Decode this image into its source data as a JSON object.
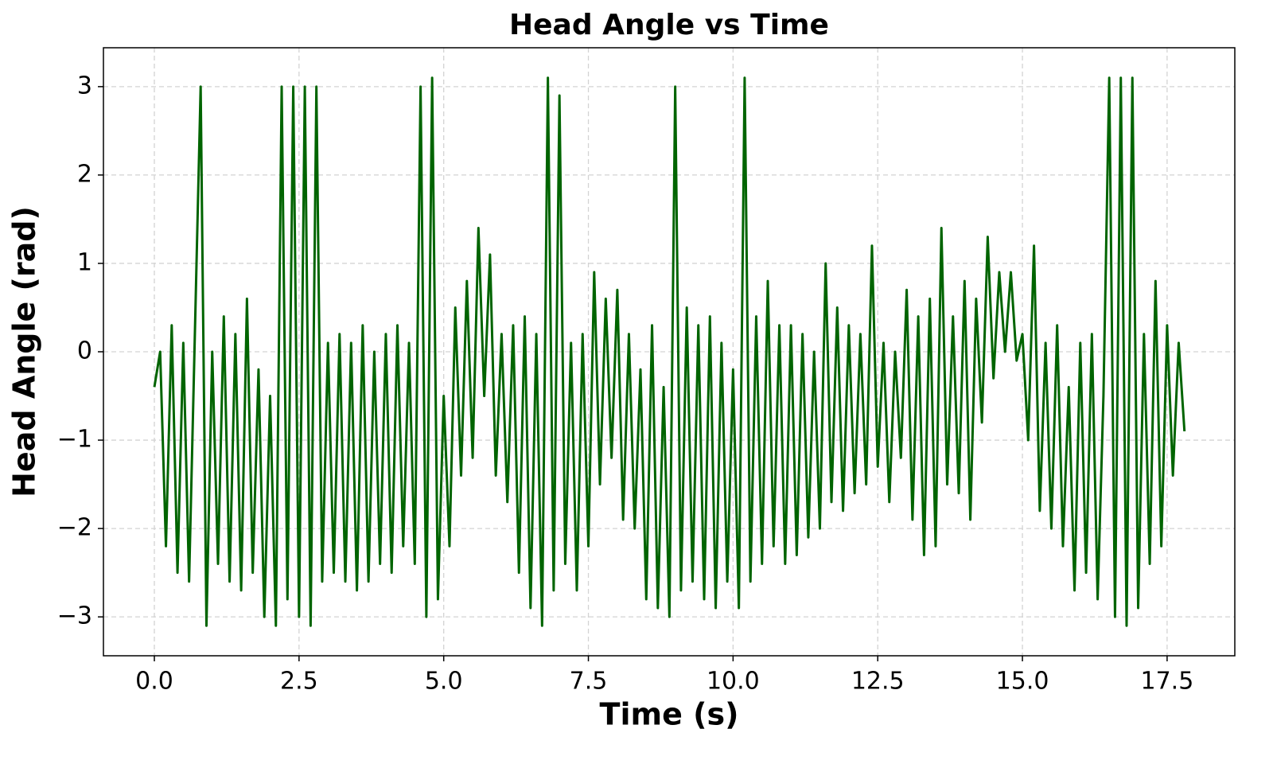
{
  "chart_data": {
    "type": "line",
    "title": "Head Angle vs Time",
    "x_label": "Time (s)",
    "y_label": "Head Angle (rad)",
    "color": "#006400",
    "grid": true,
    "xlim": [
      -0.88,
      18.67
    ],
    "ylim": [
      -3.44,
      3.44
    ],
    "xticks": [
      {
        "value": 0,
        "label": "0.0"
      },
      2.5,
      {
        "value": 5,
        "label": "5.0"
      },
      7.5,
      {
        "value": 10,
        "label": "10.0"
      },
      12.5,
      {
        "value": 15,
        "label": "15.0"
      },
      17.5
    ],
    "yticks": [
      {
        "value": -3,
        "label": "−3"
      },
      {
        "value": -2,
        "label": "−2"
      },
      {
        "value": -1,
        "label": "−1"
      },
      0,
      1,
      2,
      3
    ],
    "x": [
      0,
      0.1,
      0.2,
      0.3,
      0.4,
      0.5,
      0.6,
      0.7,
      0.8,
      0.9,
      1,
      1.1,
      1.2,
      1.3,
      1.4,
      1.5,
      1.6,
      1.7,
      1.8,
      1.9,
      2,
      2.1,
      2.2,
      2.3,
      2.4,
      2.5,
      2.6,
      2.7,
      2.8,
      2.9,
      3,
      3.1,
      3.2,
      3.3,
      3.4,
      3.5,
      3.6,
      3.7,
      3.8,
      3.9,
      4,
      4.1,
      4.2,
      4.3,
      4.4,
      4.5,
      4.6,
      4.7,
      4.8,
      4.9,
      5,
      5.1,
      5.2,
      5.3,
      5.4,
      5.5,
      5.6,
      5.7,
      5.8,
      5.9,
      6,
      6.1,
      6.2,
      6.3,
      6.4,
      6.5,
      6.6,
      6.7,
      6.8,
      6.9,
      7,
      7.1,
      7.2,
      7.3,
      7.4,
      7.5,
      7.6,
      7.7,
      7.8,
      7.9,
      8,
      8.1,
      8.2,
      8.3,
      8.4,
      8.5,
      8.6,
      8.7,
      8.8,
      8.9,
      9,
      9.1,
      9.2,
      9.3,
      9.4,
      9.5,
      9.6,
      9.7,
      9.8,
      9.9,
      10,
      10.1,
      10.2,
      10.3,
      10.4,
      10.5,
      10.6,
      10.7,
      10.8,
      10.9,
      11,
      11.1,
      11.2,
      11.3,
      11.4,
      11.5,
      11.6,
      11.7,
      11.8,
      11.9,
      12,
      12.1,
      12.2,
      12.3,
      12.4,
      12.5,
      12.6,
      12.7,
      12.8,
      12.9,
      13,
      13.1,
      13.2,
      13.3,
      13.4,
      13.5,
      13.6,
      13.7,
      13.8,
      13.9,
      14,
      14.1,
      14.2,
      14.3,
      14.4,
      14.5,
      14.6,
      14.7,
      14.8,
      14.9,
      15,
      15.1,
      15.2,
      15.3,
      15.4,
      15.5,
      15.6,
      15.7,
      15.8,
      15.9,
      16,
      16.1,
      16.2,
      16.3,
      16.4,
      16.5,
      16.6,
      16.7,
      16.8,
      16.9,
      17,
      17.1,
      17.2,
      17.3,
      17.4,
      17.5,
      17.6,
      17.7,
      17.8
    ],
    "values": [
      -0.4,
      0.0,
      -2.2,
      0.3,
      -2.5,
      0.1,
      -2.6,
      0.2,
      3.0,
      -3.1,
      0.0,
      -2.4,
      0.4,
      -2.6,
      0.2,
      -2.7,
      0.6,
      -2.5,
      -0.2,
      -3.0,
      -0.5,
      -3.1,
      3.0,
      -2.8,
      3.0,
      -3.0,
      3.0,
      -3.1,
      3.0,
      -2.6,
      0.1,
      -2.5,
      0.2,
      -2.6,
      0.1,
      -2.7,
      0.3,
      -2.6,
      0.0,
      -2.4,
      0.2,
      -2.5,
      0.3,
      -2.2,
      0.1,
      -2.4,
      3.0,
      -3.0,
      3.1,
      -2.8,
      -0.5,
      -2.2,
      0.5,
      -1.4,
      0.8,
      -1.2,
      1.4,
      -0.5,
      1.1,
      -1.4,
      0.2,
      -1.7,
      0.3,
      -2.5,
      0.4,
      -2.9,
      0.2,
      -3.1,
      3.1,
      -2.7,
      2.9,
      -2.4,
      0.1,
      -2.7,
      0.2,
      -2.2,
      0.9,
      -1.5,
      0.6,
      -1.2,
      0.7,
      -1.9,
      0.2,
      -2.0,
      -0.2,
      -2.8,
      0.3,
      -2.9,
      -0.4,
      -3.0,
      3.0,
      -2.7,
      0.5,
      -2.6,
      0.3,
      -2.8,
      0.4,
      -2.9,
      0.1,
      -2.6,
      -0.2,
      -2.9,
      3.1,
      -2.6,
      0.4,
      -2.4,
      0.8,
      -2.2,
      0.3,
      -2.4,
      0.3,
      -2.3,
      0.2,
      -2.1,
      0.0,
      -2.0,
      1.0,
      -1.7,
      0.5,
      -1.8,
      0.3,
      -1.6,
      0.2,
      -1.5,
      1.2,
      -1.3,
      0.1,
      -1.7,
      0.0,
      -1.2,
      0.7,
      -1.9,
      0.4,
      -2.3,
      0.6,
      -2.2,
      1.4,
      -1.5,
      0.4,
      -1.6,
      0.8,
      -1.9,
      0.6,
      -0.8,
      1.3,
      -0.3,
      0.9,
      0.0,
      0.9,
      -0.1,
      0.2,
      -1.0,
      1.2,
      -1.8,
      0.1,
      -2.0,
      0.3,
      -2.2,
      -0.4,
      -2.7,
      0.1,
      -2.5,
      0.2,
      -2.8,
      -0.5,
      3.1,
      -3.0,
      3.1,
      -3.1,
      3.1,
      -2.9,
      0.2,
      -2.4,
      0.8,
      -2.2,
      0.3,
      -1.4,
      0.1,
      -0.9
    ]
  }
}
